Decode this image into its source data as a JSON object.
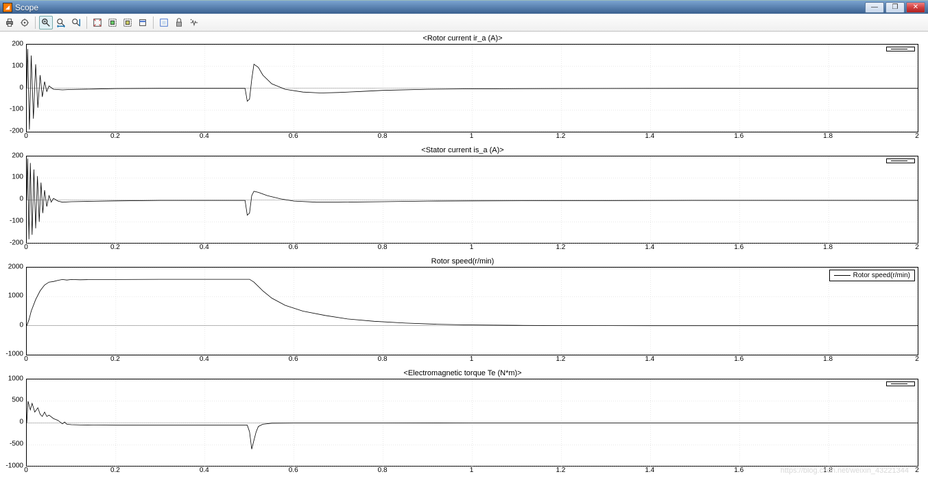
{
  "window": {
    "title": "Scope"
  },
  "toolbar": {
    "buttons": [
      {
        "name": "print-icon",
        "title": "Print"
      },
      {
        "name": "params-icon",
        "title": "Parameters"
      },
      {
        "sep": true
      },
      {
        "name": "zoom-icon",
        "title": "Zoom",
        "active": true
      },
      {
        "name": "zoom-x-icon",
        "title": "Zoom X"
      },
      {
        "name": "zoom-y-icon",
        "title": "Zoom Y"
      },
      {
        "sep": true
      },
      {
        "name": "autoscale-icon",
        "title": "Autoscale"
      },
      {
        "name": "save-axes-icon",
        "title": "Save axes"
      },
      {
        "name": "restore-axes-icon",
        "title": "Restore axes"
      },
      {
        "name": "float-icon",
        "title": "Floating"
      },
      {
        "sep": true
      },
      {
        "name": "highlight-icon",
        "title": "Highlight"
      },
      {
        "name": "lock-icon",
        "title": "Lock axes"
      },
      {
        "name": "signal-icon",
        "title": "Signal selection"
      }
    ]
  },
  "plot_common": {
    "xlim": [
      0,
      2
    ],
    "xticks": [
      0,
      0.2,
      0.4,
      0.6,
      0.8,
      1.0,
      1.2,
      1.4,
      1.6,
      1.8,
      2.0
    ],
    "grid_color": "#d0d0d0",
    "line_color": "#000000",
    "background": "#ffffff",
    "border_color": "#000000",
    "font_size": 10
  },
  "subplots": [
    {
      "title": "<Rotor current ir_a (A)>",
      "legend": "<Rotor current ir_a (A)>",
      "ylim": [
        -200,
        200
      ],
      "yticks": [
        -200,
        -100,
        0,
        100,
        200
      ],
      "series": [
        {
          "color": "#000000",
          "data": [
            [
              0,
              0
            ],
            [
              0.002,
              180
            ],
            [
              0.006,
              -190
            ],
            [
              0.01,
              150
            ],
            [
              0.015,
              -140
            ],
            [
              0.02,
              110
            ],
            [
              0.025,
              -90
            ],
            [
              0.03,
              60
            ],
            [
              0.035,
              -40
            ],
            [
              0.04,
              30
            ],
            [
              0.045,
              -15
            ],
            [
              0.05,
              10
            ],
            [
              0.06,
              -5
            ],
            [
              0.08,
              -8
            ],
            [
              0.1,
              -6
            ],
            [
              0.15,
              -4
            ],
            [
              0.2,
              -2
            ],
            [
              0.3,
              -1
            ],
            [
              0.4,
              -1
            ],
            [
              0.49,
              -1
            ],
            [
              0.495,
              -60
            ],
            [
              0.5,
              -50
            ],
            [
              0.505,
              40
            ],
            [
              0.51,
              110
            ],
            [
              0.52,
              95
            ],
            [
              0.53,
              60
            ],
            [
              0.55,
              20
            ],
            [
              0.58,
              -5
            ],
            [
              0.62,
              -18
            ],
            [
              0.66,
              -22
            ],
            [
              0.7,
              -20
            ],
            [
              0.75,
              -15
            ],
            [
              0.8,
              -10
            ],
            [
              0.9,
              -5
            ],
            [
              1.0,
              -3
            ],
            [
              1.2,
              -2
            ],
            [
              1.5,
              -1
            ],
            [
              2.0,
              -1
            ]
          ]
        }
      ]
    },
    {
      "title": "<Stator current is_a (A)>",
      "legend": "<Stator current is_a (A)>",
      "ylim": [
        -200,
        200
      ],
      "yticks": [
        -200,
        -100,
        0,
        100,
        200
      ],
      "series": [
        {
          "color": "#000000",
          "data": [
            [
              0,
              0
            ],
            [
              0.002,
              190
            ],
            [
              0.005,
              -180
            ],
            [
              0.008,
              170
            ],
            [
              0.012,
              -160
            ],
            [
              0.016,
              140
            ],
            [
              0.02,
              -130
            ],
            [
              0.024,
              110
            ],
            [
              0.028,
              -100
            ],
            [
              0.032,
              80
            ],
            [
              0.036,
              -60
            ],
            [
              0.04,
              45
            ],
            [
              0.045,
              -30
            ],
            [
              0.05,
              20
            ],
            [
              0.055,
              -10
            ],
            [
              0.06,
              8
            ],
            [
              0.07,
              -5
            ],
            [
              0.08,
              -10
            ],
            [
              0.1,
              -8
            ],
            [
              0.15,
              -6
            ],
            [
              0.2,
              -4
            ],
            [
              0.3,
              -2
            ],
            [
              0.4,
              -2
            ],
            [
              0.49,
              -2
            ],
            [
              0.495,
              -70
            ],
            [
              0.5,
              -60
            ],
            [
              0.505,
              20
            ],
            [
              0.51,
              40
            ],
            [
              0.52,
              35
            ],
            [
              0.54,
              20
            ],
            [
              0.57,
              5
            ],
            [
              0.6,
              -5
            ],
            [
              0.65,
              -10
            ],
            [
              0.7,
              -10
            ],
            [
              0.8,
              -8
            ],
            [
              0.9,
              -5
            ],
            [
              1.0,
              -4
            ],
            [
              1.5,
              -2
            ],
            [
              2.0,
              -2
            ]
          ]
        }
      ]
    },
    {
      "title": "Rotor speed(r/min)",
      "legend": "Rotor speed(r/min)",
      "ylim": [
        -1000,
        2000
      ],
      "yticks": [
        -1000,
        0,
        1000,
        2000
      ],
      "series": [
        {
          "color": "#000000",
          "data": [
            [
              0,
              0
            ],
            [
              0.005,
              200
            ],
            [
              0.01,
              500
            ],
            [
              0.02,
              900
            ],
            [
              0.03,
              1200
            ],
            [
              0.04,
              1400
            ],
            [
              0.05,
              1500
            ],
            [
              0.06,
              1520
            ],
            [
              0.07,
              1560
            ],
            [
              0.08,
              1590
            ],
            [
              0.09,
              1570
            ],
            [
              0.1,
              1590
            ],
            [
              0.12,
              1580
            ],
            [
              0.15,
              1590
            ],
            [
              0.2,
              1590
            ],
            [
              0.3,
              1595
            ],
            [
              0.4,
              1595
            ],
            [
              0.49,
              1595
            ],
            [
              0.5,
              1595
            ],
            [
              0.51,
              1500
            ],
            [
              0.53,
              1200
            ],
            [
              0.55,
              950
            ],
            [
              0.58,
              700
            ],
            [
              0.62,
              500
            ],
            [
              0.67,
              350
            ],
            [
              0.72,
              230
            ],
            [
              0.78,
              150
            ],
            [
              0.85,
              90
            ],
            [
              0.92,
              50
            ],
            [
              1.0,
              25
            ],
            [
              1.1,
              10
            ],
            [
              1.2,
              5
            ],
            [
              1.4,
              0
            ],
            [
              2.0,
              0
            ]
          ]
        }
      ]
    },
    {
      "title": "<Electromagnetic torque Te (N*m)>",
      "legend": "<Electromagnetic torque Te (N*m)>",
      "ylim": [
        -1000,
        1000
      ],
      "yticks": [
        -1000,
        -500,
        0,
        500,
        1000
      ],
      "series": [
        {
          "color": "#000000",
          "data": [
            [
              0,
              0
            ],
            [
              0.003,
              500
            ],
            [
              0.008,
              300
            ],
            [
              0.012,
              450
            ],
            [
              0.018,
              250
            ],
            [
              0.025,
              350
            ],
            [
              0.03,
              200
            ],
            [
              0.035,
              150
            ],
            [
              0.04,
              250
            ],
            [
              0.045,
              150
            ],
            [
              0.05,
              180
            ],
            [
              0.06,
              100
            ],
            [
              0.07,
              60
            ],
            [
              0.08,
              -20
            ],
            [
              0.085,
              20
            ],
            [
              0.09,
              -30
            ],
            [
              0.1,
              -40
            ],
            [
              0.12,
              -45
            ],
            [
              0.15,
              -48
            ],
            [
              0.2,
              -50
            ],
            [
              0.3,
              -50
            ],
            [
              0.4,
              -50
            ],
            [
              0.49,
              -50
            ],
            [
              0.495,
              -50
            ],
            [
              0.5,
              -200
            ],
            [
              0.505,
              -600
            ],
            [
              0.51,
              -400
            ],
            [
              0.515,
              -200
            ],
            [
              0.52,
              -80
            ],
            [
              0.53,
              -30
            ],
            [
              0.55,
              -5
            ],
            [
              0.6,
              -2
            ],
            [
              0.8,
              -1
            ],
            [
              1.0,
              0
            ],
            [
              2.0,
              0
            ]
          ]
        }
      ]
    }
  ],
  "watermark": "https://blog.csdn.net/weixin_43221344"
}
